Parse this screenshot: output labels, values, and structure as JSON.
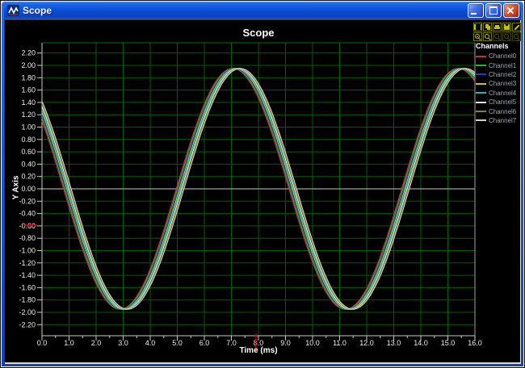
{
  "window": {
    "title": "Scope"
  },
  "legend": {
    "title": "Channels"
  },
  "toolbar": {
    "buttons": [
      {
        "name": "pause",
        "icon": "pause-icon",
        "enabled": true
      },
      {
        "name": "copy",
        "icon": "copy-icon",
        "enabled": true
      },
      {
        "name": "print",
        "icon": "print-icon",
        "enabled": true
      },
      {
        "name": "save",
        "icon": "save-icon",
        "enabled": true
      },
      {
        "name": "settings",
        "icon": "settings-icon",
        "enabled": true
      },
      {
        "name": "zoom-in",
        "icon": "zoom-in-icon",
        "enabled": true
      },
      {
        "name": "zoom-out",
        "icon": "zoom-out-icon",
        "enabled": true
      },
      {
        "name": "zoom-x",
        "icon": "zoom-x-icon",
        "enabled": false
      },
      {
        "name": "zoom-y",
        "icon": "zoom-y-icon",
        "enabled": false
      },
      {
        "name": "zoom-reset",
        "icon": "zoom-reset-icon",
        "enabled": false
      }
    ]
  },
  "chart_data": {
    "type": "line",
    "title": "Scope",
    "xlabel": "Time (ms)",
    "ylabel": "Y Axis",
    "xlim": [
      0,
      16
    ],
    "ylim": [
      -2.4,
      2.4
    ],
    "grid": true,
    "grid_color": "#006000",
    "legend_position": "right",
    "x_ticks": [
      "0.0",
      "1.0",
      "2.0",
      "3.0",
      "4.0",
      "5.0",
      "6.0",
      "7.0",
      "8.0",
      "9.0",
      "10.0",
      "11.0",
      "12.0",
      "13.0",
      "14.0",
      "15.0",
      "16.0"
    ],
    "y_ticks": [
      "2.20",
      "2.00",
      "1.80",
      "1.60",
      "1.40",
      "1.20",
      "1.00",
      "0.80",
      "0.60",
      "0.40",
      "0.20",
      "0.00",
      "-0.20",
      "-0.40",
      "-0.60",
      "-0.80",
      "-1.00",
      "-1.20",
      "-1.40",
      "-1.60",
      "-1.80",
      "-2.00",
      "-2.20"
    ],
    "waveform": "sine",
    "amplitude": 1.95,
    "period_ms": 8.33,
    "phase_rad": 2.54,
    "series": [
      {
        "name": "Channel0",
        "color": "#d42a2a",
        "delay_ms": 0.0
      },
      {
        "name": "Channel1",
        "color": "#1fb832",
        "delay_ms": 0.04
      },
      {
        "name": "Channel2",
        "color": "#2438d4",
        "delay_ms": 0.08
      },
      {
        "name": "Channel3",
        "color": "#c8c31e",
        "delay_ms": 0.12
      },
      {
        "name": "Channel4",
        "color": "#18b8c8",
        "delay_ms": 0.16
      },
      {
        "name": "Channel5",
        "color": "#e8e8e8",
        "delay_ms": 0.2
      },
      {
        "name": "Channel6",
        "color": "#8f8514",
        "delay_ms": 0.24
      },
      {
        "name": "Channel7",
        "color": "#d0d0d0",
        "delay_ms": 0.28
      }
    ]
  },
  "axis_markers": {
    "color": "#d40000",
    "y_value": -0.59,
    "x_value_ms": 7.91
  }
}
